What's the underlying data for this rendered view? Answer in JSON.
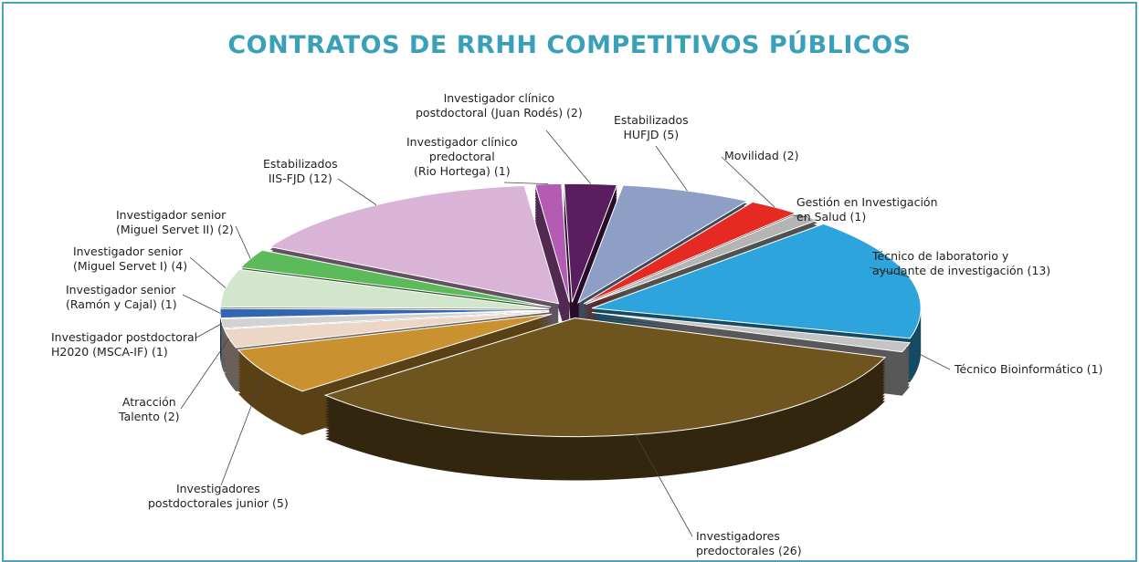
{
  "chart_data": {
    "type": "pie",
    "title": "CONTRATOS DE RRHH COMPETITIVOS PÚBLICOS",
    "categories": [
      "Investigador clínico\npredoctoral\n(Rio Hortega) (1)",
      "Investigador clínico\npostdoctoral (Juan Rodés) (2)",
      "Estabilizados\nHUFJD (5)",
      "Movilidad (2)",
      "Gestión en Investigación\nen Salud (1)",
      "Técnico de laboratorio y\nayudante de investigación (13)",
      "Técnico Bioinformático (1)",
      "Investigadores\npredoctorales (26)",
      "Investigadores\npostdoctorales junior (5)",
      "Atracción\nTalento (2)",
      "Investigador postdoctoral\nH2020 (MSCA-IF) (1)",
      "Investigador senior\n(Ramón y Cajal) (1)",
      "Investigador senior\n(Miguel Servet I) (4)",
      "Investigador senior\n(Miguel Servet II) (2)",
      "Estabilizados\nIIS-FJD (12)"
    ],
    "values": [
      1,
      2,
      5,
      2,
      1,
      13,
      1,
      26,
      5,
      2,
      1,
      1,
      4,
      2,
      12
    ],
    "colors": [
      "#b45cb4",
      "#5a1d5e",
      "#8e9fc6",
      "#e42a22",
      "#b4b4b4",
      "#2ea4dc",
      "#c4c4c4",
      "#6e5520",
      "#c9912f",
      "#ecd6c6",
      "#d2d2d2",
      "#3366b2",
      "#d2e6cc",
      "#5cba5a",
      "#dab4d6"
    ]
  }
}
